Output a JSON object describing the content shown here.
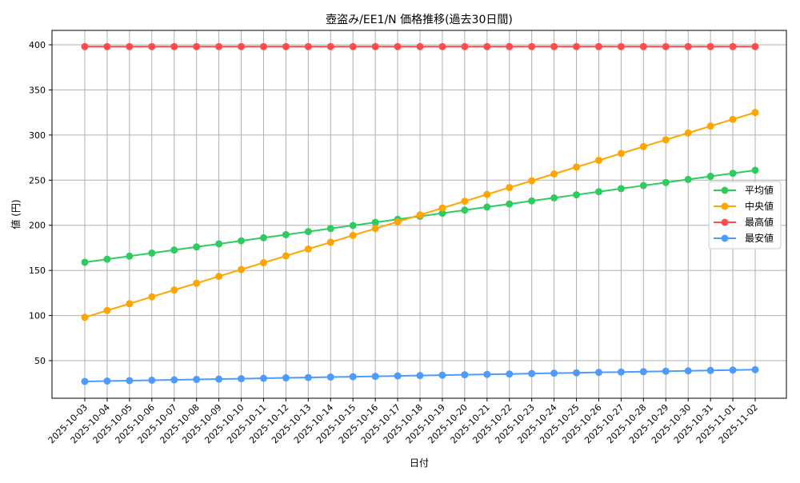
{
  "chart_data": {
    "type": "line",
    "title": "壺盗み/EE1/N 価格推移(過去30日間)",
    "xlabel": "日付",
    "ylabel": "値 (円)",
    "ylim": [
      10,
      416
    ],
    "yticks": [
      50,
      100,
      150,
      200,
      250,
      300,
      350,
      400
    ],
    "grid": true,
    "legend_position": "center right",
    "categories": [
      "2025-10-03",
      "2025-10-04",
      "2025-10-05",
      "2025-10-06",
      "2025-10-07",
      "2025-10-08",
      "2025-10-09",
      "2025-10-10",
      "2025-10-11",
      "2025-10-12",
      "2025-10-13",
      "2025-10-14",
      "2025-10-15",
      "2025-10-16",
      "2025-10-17",
      "2025-10-18",
      "2025-10-19",
      "2025-10-20",
      "2025-10-21",
      "2025-10-22",
      "2025-10-23",
      "2025-10-24",
      "2025-10-25",
      "2025-10-26",
      "2025-10-27",
      "2025-10-28",
      "2025-10-29",
      "2025-10-30",
      "2025-10-31",
      "2025-11-01",
      "2025-11-02"
    ],
    "series": [
      {
        "name": "平均値",
        "color": "#2ecc5f",
        "values": [
          159,
          162.4,
          165.8,
          169.2,
          172.6,
          176,
          179.4,
          182.8,
          186.2,
          189.6,
          193,
          196.4,
          199.8,
          203.2,
          206.6,
          210,
          213.4,
          216.8,
          220.2,
          223.6,
          227,
          230.4,
          233.8,
          237.2,
          240.6,
          244,
          247.4,
          250.8,
          254.2,
          257.6,
          261
        ]
      },
      {
        "name": "中央値",
        "color": "#ffa500",
        "values": [
          98,
          105.6,
          113.1,
          120.7,
          128.3,
          135.8,
          143.4,
          151,
          158.5,
          166.1,
          173.7,
          181.2,
          188.8,
          196.4,
          203.9,
          211.5,
          219.1,
          226.6,
          234.2,
          241.8,
          249.3,
          256.9,
          264.5,
          272,
          279.6,
          287.2,
          294.7,
          302.3,
          309.9,
          317.4,
          325
        ]
      },
      {
        "name": "最高値",
        "color": "#ff4d4d",
        "values": [
          398,
          398,
          398,
          398,
          398,
          398,
          398,
          398,
          398,
          398,
          398,
          398,
          398,
          398,
          398,
          398,
          398,
          398,
          398,
          398,
          398,
          398,
          398,
          398,
          398,
          398,
          398,
          398,
          398,
          398,
          398
        ]
      },
      {
        "name": "最安値",
        "color": "#4d9bff",
        "values": [
          27,
          27.4,
          27.9,
          28.3,
          28.7,
          29.2,
          29.6,
          30,
          30.5,
          30.9,
          31.3,
          31.8,
          32.2,
          32.6,
          33.1,
          33.5,
          33.9,
          34.4,
          34.8,
          35.2,
          35.7,
          36.1,
          36.5,
          37,
          37.4,
          37.8,
          38.3,
          38.7,
          39.1,
          39.6,
          40
        ]
      }
    ]
  }
}
